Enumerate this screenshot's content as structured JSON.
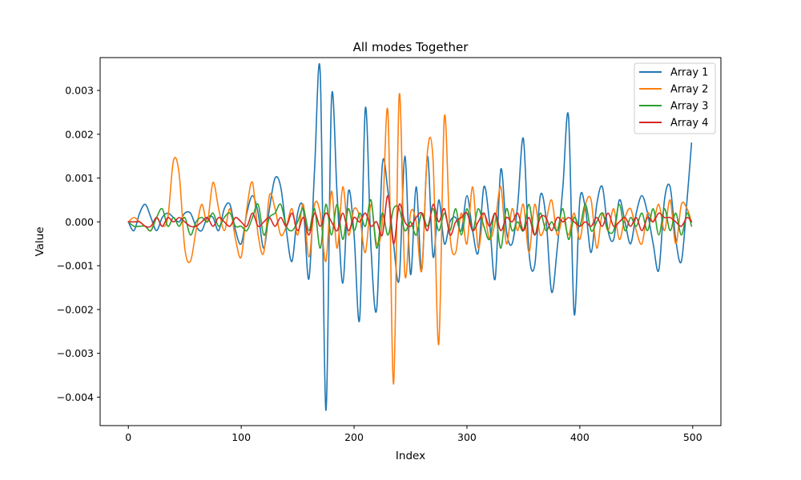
{
  "chart_data": {
    "type": "line",
    "title": "All modes Together",
    "xlabel": "Index",
    "ylabel": "Value",
    "xlim": [
      -25,
      525
    ],
    "ylim": [
      -0.00465,
      0.00375
    ],
    "xticks": [
      0,
      100,
      200,
      300,
      400,
      500
    ],
    "xtick_labels": [
      "0",
      "100",
      "200",
      "300",
      "400",
      "500"
    ],
    "yticks": [
      -0.004,
      -0.003,
      -0.002,
      -0.001,
      0.0,
      0.001,
      0.002,
      0.003
    ],
    "ytick_labels": [
      "−0.004",
      "−0.003",
      "−0.002",
      "−0.001",
      "0.000",
      "0.001",
      "0.002",
      "0.003"
    ],
    "grid": false,
    "legend_position": "top-right",
    "colors": {
      "Array 1": "#1f77b4",
      "Array 2": "#ff7f0e",
      "Array 3": "#2ca02c",
      "Array 4": "#d62728"
    },
    "x": [
      0,
      5,
      10,
      15,
      20,
      25,
      30,
      35,
      40,
      45,
      50,
      55,
      60,
      65,
      70,
      75,
      80,
      85,
      90,
      95,
      100,
      105,
      110,
      115,
      120,
      125,
      130,
      135,
      140,
      145,
      150,
      155,
      160,
      165,
      170,
      175,
      180,
      185,
      190,
      195,
      200,
      205,
      210,
      215,
      220,
      225,
      230,
      235,
      240,
      245,
      250,
      255,
      260,
      265,
      270,
      275,
      280,
      285,
      290,
      295,
      300,
      305,
      310,
      315,
      320,
      325,
      330,
      335,
      340,
      345,
      350,
      355,
      360,
      365,
      370,
      375,
      380,
      385,
      390,
      395,
      400,
      405,
      410,
      415,
      420,
      425,
      430,
      435,
      440,
      445,
      450,
      455,
      460,
      465,
      470,
      475,
      480,
      485,
      490,
      495,
      499
    ],
    "series": [
      {
        "name": "Array 1",
        "values": [
          0.0,
          -0.0002,
          0.0002,
          0.0004,
          0.0001,
          -0.0002,
          0.0001,
          0.0002,
          0.0001,
          0.0,
          0.0002,
          0.0002,
          -0.0001,
          -0.0002,
          0.0001,
          0.0001,
          -0.0002,
          0.0003,
          0.0004,
          -0.0002,
          -0.0005,
          0.0002,
          0.0006,
          0.0002,
          -0.0006,
          0.0003,
          0.001,
          0.0008,
          -0.0002,
          -0.0009,
          0.0002,
          0.0003,
          -0.0013,
          0.0012,
          0.0034,
          -0.0043,
          0.0028,
          0.0006,
          -0.0014,
          0.0007,
          -0.0003,
          -0.0022,
          0.0026,
          -0.0006,
          -0.002,
          0.0013,
          0.0007,
          -0.0005,
          -0.0013,
          0.0015,
          -0.0012,
          0.0008,
          -0.0011,
          0.0015,
          -0.0008,
          0.0005,
          -0.0005,
          0.0,
          0.0001,
          -0.0002,
          0.0006,
          -0.0002,
          -0.0007,
          0.0008,
          0.0,
          -0.0013,
          0.0012,
          -0.0002,
          -0.0005,
          0.0004,
          0.0019,
          -0.0007,
          -0.001,
          0.0006,
          0.0001,
          -0.0016,
          -0.0006,
          0.0008,
          0.0024,
          -0.0021,
          0.0005,
          0.0003,
          -0.0007,
          0.0004,
          0.0008,
          -0.0002,
          -0.0004,
          0.0005,
          0.0,
          -0.0005,
          0.0002,
          0.0006,
          0.0002,
          -0.0005,
          -0.0011,
          0.0005,
          0.0008,
          -0.0004,
          -0.0009,
          0.0005,
          0.0018
        ]
      },
      {
        "name": "Array 2",
        "values": [
          0.0,
          0.0001,
          0.0,
          -0.0001,
          -0.0002,
          0.0001,
          -0.0001,
          0.0001,
          0.0014,
          0.0011,
          -0.0006,
          -0.0009,
          -0.0002,
          0.0004,
          0.0,
          0.0009,
          0.0003,
          -0.0002,
          0.0003,
          -0.0004,
          -0.0008,
          0.0003,
          0.0009,
          -0.0003,
          -0.0007,
          0.0006,
          0.0003,
          -0.0003,
          -0.0001,
          0.0003,
          -0.0003,
          0.0004,
          -0.0008,
          0.0004,
          0.0002,
          -0.0009,
          0.0007,
          -0.0006,
          0.0008,
          -0.0003,
          0.0003,
          0.0001,
          -0.0007,
          0.0004,
          -0.0005,
          0.0,
          0.0025,
          -0.0037,
          0.0029,
          -0.0012,
          0.0002,
          0.0,
          -0.0011,
          0.0016,
          0.0014,
          -0.0028,
          0.0024,
          -0.0003,
          -0.0007,
          0.0002,
          -0.0005,
          0.0008,
          -0.0006,
          0.0002,
          -0.0004,
          0.0,
          0.0008,
          -0.0005,
          0.0003,
          -0.0002,
          0.0004,
          -0.0007,
          0.0004,
          -0.0003,
          0.0,
          0.0005,
          -0.0003,
          0.0001,
          -0.0003,
          0.0002,
          -0.0004,
          0.0004,
          0.0005,
          -0.0006,
          0.0002,
          -0.0002,
          0.0003,
          -0.0004,
          0.0001,
          0.0003,
          -0.0002,
          -0.0005,
          0.0002,
          0.0,
          0.0004,
          -0.0002,
          0.0005,
          -0.0005,
          0.0004,
          0.0003,
          0.0
        ]
      },
      {
        "name": "Array 3",
        "values": [
          0.0,
          -0.0001,
          -0.0001,
          -0.0001,
          -0.0002,
          0.0001,
          0.0003,
          -0.0001,
          0.0001,
          -0.0001,
          0.0001,
          -0.0003,
          0.0,
          0.0001,
          0.0,
          0.0002,
          -0.0001,
          0.0001,
          0.0002,
          -0.0001,
          -0.0001,
          -0.0002,
          0.0001,
          0.0004,
          -0.0003,
          0.0001,
          0.0002,
          0.0004,
          -0.0001,
          -0.0002,
          0.0,
          0.0003,
          -0.0002,
          0.0003,
          -0.0006,
          0.0004,
          -0.0003,
          0.0004,
          -0.0004,
          0.0003,
          -0.0002,
          0.0002,
          -0.0001,
          0.0005,
          -0.0006,
          0.0002,
          -0.0003,
          0.0003,
          0.0003,
          -0.0002,
          0.0,
          -0.0003,
          0.0002,
          -0.0001,
          0.0003,
          -0.0002,
          0.0002,
          -0.0002,
          0.0003,
          -0.0003,
          0.0003,
          -0.0002,
          0.0003,
          -0.0001,
          -0.0004,
          0.0002,
          -0.0006,
          0.0003,
          -0.0002,
          0.0,
          -0.0002,
          0.0004,
          -0.0003,
          0.0002,
          -0.0002,
          0.0,
          -0.0002,
          0.0003,
          -0.0004,
          0.0001,
          -0.0001,
          0.0004,
          -0.0002,
          0.0,
          0.0002,
          -0.0002,
          -0.0002,
          0.0004,
          -0.0002,
          0.0001,
          -0.0001,
          0.0002,
          -0.0002,
          0.0003,
          -0.0003,
          0.0003,
          -0.0002,
          0.0002,
          -0.0003,
          0.0002,
          -0.0001
        ]
      },
      {
        "name": "Array 4",
        "values": [
          0.0,
          0.0,
          0.0,
          -0.0001,
          -0.0001,
          0.0001,
          -0.0001,
          0.0001,
          0.0,
          0.0001,
          0.0,
          -0.0001,
          -0.0001,
          0.0,
          0.0001,
          -0.0001,
          0.0001,
          0.0,
          -0.0001,
          0.0001,
          0.0,
          -0.0001,
          0.0002,
          -0.0001,
          0.0,
          0.0001,
          -0.0001,
          0.0001,
          -0.0001,
          0.0002,
          -0.0002,
          0.0001,
          -0.0003,
          0.0002,
          -0.0001,
          0.0002,
          0.0,
          -0.0002,
          0.0002,
          -0.0002,
          0.0001,
          0.0,
          0.0002,
          -0.0001,
          0.0,
          -0.0003,
          0.0006,
          -0.0005,
          0.0004,
          0.0,
          -0.0001,
          0.0001,
          0.0002,
          -0.0002,
          0.0004,
          0.0,
          0.0003,
          -0.0003,
          0.0,
          0.0001,
          0.0002,
          -0.0002,
          0.0,
          0.0002,
          -0.0001,
          0.0002,
          -0.0002,
          0.0001,
          0.0,
          0.0002,
          -0.0002,
          0.0001,
          -0.0003,
          0.0001,
          0.0001,
          -0.0002,
          0.0001,
          0.0,
          0.0001,
          0.0,
          -0.0001,
          0.0,
          -0.0001,
          0.0001,
          -0.0001,
          0.0002,
          -0.0001,
          0.0,
          0.0001,
          -0.0001,
          0.0001,
          -0.0002,
          0.0001,
          0.0,
          0.0002,
          0.0001,
          0.0001,
          0.0,
          -0.0001,
          0.0001,
          0.0
        ]
      }
    ]
  }
}
